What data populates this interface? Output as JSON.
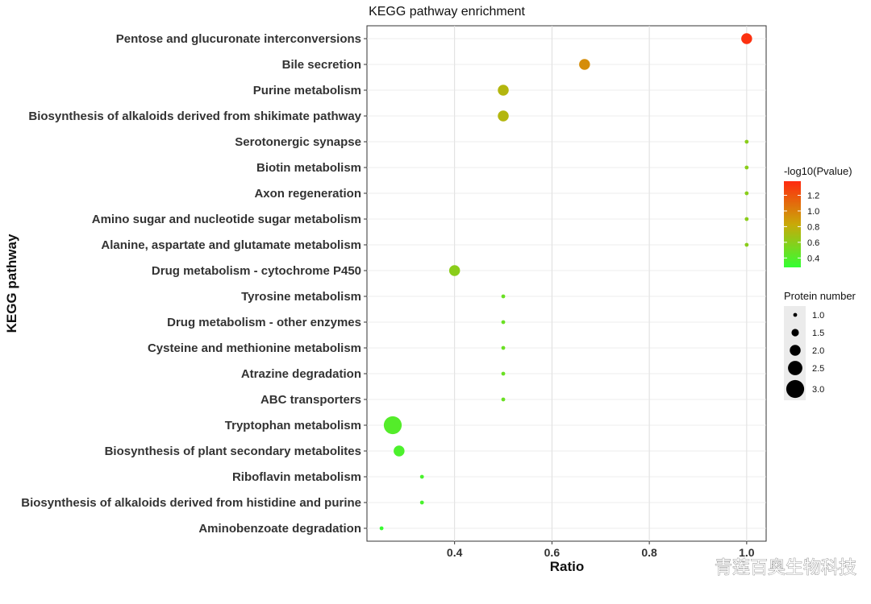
{
  "chart_data": {
    "type": "scatter",
    "title": "KEGG pathway enrichment",
    "xlabel": "Ratio",
    "ylabel": "KEGG pathway",
    "xlim": [
      0.22,
      1.04
    ],
    "xticks": [
      0.4,
      0.6,
      0.8,
      1.0
    ],
    "xtick_labels": [
      "0.4",
      "0.6",
      "0.8",
      "1.0"
    ],
    "grid": false,
    "points": [
      {
        "pathway": "Pentose and glucuronate interconversions",
        "ratio": 1.0,
        "count": 2,
        "neglog10p": 1.35
      },
      {
        "pathway": "Bile secretion",
        "ratio": 0.667,
        "count": 2,
        "neglog10p": 0.95
      },
      {
        "pathway": "Purine metabolism",
        "ratio": 0.5,
        "count": 2,
        "neglog10p": 0.75
      },
      {
        "pathway": "Biosynthesis of alkaloids derived from shikimate pathway",
        "ratio": 0.5,
        "count": 2,
        "neglog10p": 0.75
      },
      {
        "pathway": "Serotonergic synapse",
        "ratio": 1.0,
        "count": 1,
        "neglog10p": 0.6
      },
      {
        "pathway": "Biotin metabolism",
        "ratio": 1.0,
        "count": 1,
        "neglog10p": 0.6
      },
      {
        "pathway": "Axon regeneration",
        "ratio": 1.0,
        "count": 1,
        "neglog10p": 0.6
      },
      {
        "pathway": "Amino sugar and nucleotide sugar metabolism",
        "ratio": 1.0,
        "count": 1,
        "neglog10p": 0.6
      },
      {
        "pathway": "Alanine, aspartate and glutamate metabolism",
        "ratio": 1.0,
        "count": 1,
        "neglog10p": 0.6
      },
      {
        "pathway": "Drug metabolism - cytochrome P450",
        "ratio": 0.4,
        "count": 2,
        "neglog10p": 0.6
      },
      {
        "pathway": "Tyrosine metabolism",
        "ratio": 0.5,
        "count": 1,
        "neglog10p": 0.48
      },
      {
        "pathway": "Drug metabolism - other enzymes",
        "ratio": 0.5,
        "count": 1,
        "neglog10p": 0.48
      },
      {
        "pathway": "Cysteine and methionine metabolism",
        "ratio": 0.5,
        "count": 1,
        "neglog10p": 0.48
      },
      {
        "pathway": "Atrazine degradation",
        "ratio": 0.5,
        "count": 1,
        "neglog10p": 0.48
      },
      {
        "pathway": "ABC transporters",
        "ratio": 0.5,
        "count": 1,
        "neglog10p": 0.48
      },
      {
        "pathway": "Tryptophan metabolism",
        "ratio": 0.273,
        "count": 3,
        "neglog10p": 0.4
      },
      {
        "pathway": "Biosynthesis of plant secondary metabolites",
        "ratio": 0.286,
        "count": 2,
        "neglog10p": 0.37
      },
      {
        "pathway": "Riboflavin metabolism",
        "ratio": 0.333,
        "count": 1,
        "neglog10p": 0.36
      },
      {
        "pathway": "Biosynthesis of alkaloids derived from histidine and purine",
        "ratio": 0.333,
        "count": 1,
        "neglog10p": 0.36
      },
      {
        "pathway": "Aminobenzoate degradation",
        "ratio": 0.25,
        "count": 1,
        "neglog10p": 0.3
      }
    ],
    "color_legend": {
      "title": "-log10(Pvalue)",
      "min": 0.28,
      "max": 1.38,
      "ticks": [
        1.2,
        1.0,
        0.8,
        0.6,
        0.4
      ],
      "tick_labels": [
        "1.2",
        "1.0",
        "0.8",
        "0.6",
        "0.4"
      ],
      "low_color": "#33ff33",
      "mid_color": "#c9a908",
      "high_color": "#ff2a10",
      "placement": "right"
    },
    "size_legend": {
      "title": "Protein number",
      "values": [
        1.0,
        1.5,
        2.0,
        2.5,
        3.0
      ],
      "labels": [
        "1.0",
        "1.5",
        "2.0",
        "2.5",
        "3.0"
      ],
      "point_color": "#000000",
      "placement": "right"
    }
  },
  "watermark": {
    "text": "青莲百奥生物科技"
  }
}
